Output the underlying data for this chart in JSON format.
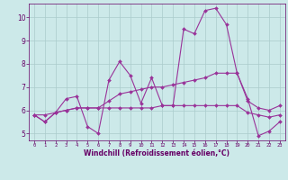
{
  "xlabel": "Windchill (Refroidissement éolien,°C)",
  "ylabel": "",
  "bg_color": "#cce9e9",
  "grid_color": "#aacccc",
  "line_color": "#993399",
  "xlim": [
    -0.5,
    23.5
  ],
  "ylim": [
    4.7,
    10.6
  ],
  "xticks": [
    0,
    1,
    2,
    3,
    4,
    5,
    6,
    7,
    8,
    9,
    10,
    11,
    12,
    13,
    14,
    15,
    16,
    17,
    18,
    19,
    20,
    21,
    22,
    23
  ],
  "yticks": [
    5,
    6,
    7,
    8,
    9,
    10
  ],
  "series": [
    [
      5.8,
      5.5,
      5.9,
      6.5,
      6.6,
      5.3,
      5.0,
      7.3,
      8.1,
      7.5,
      6.3,
      7.4,
      6.2,
      6.2,
      9.5,
      9.3,
      10.3,
      10.4,
      9.7,
      7.6,
      6.5,
      4.9,
      5.1,
      5.5
    ],
    [
      5.8,
      5.5,
      5.9,
      6.0,
      6.1,
      6.1,
      6.1,
      6.4,
      6.7,
      6.8,
      6.9,
      7.0,
      7.0,
      7.1,
      7.2,
      7.3,
      7.4,
      7.6,
      7.6,
      7.6,
      6.4,
      6.1,
      6.0,
      6.2
    ],
    [
      5.8,
      5.8,
      5.9,
      6.0,
      6.1,
      6.1,
      6.1,
      6.1,
      6.1,
      6.1,
      6.1,
      6.1,
      6.2,
      6.2,
      6.2,
      6.2,
      6.2,
      6.2,
      6.2,
      6.2,
      5.9,
      5.8,
      5.7,
      5.8
    ]
  ]
}
